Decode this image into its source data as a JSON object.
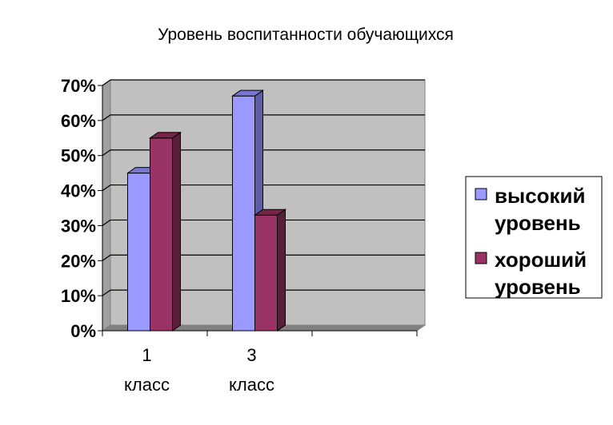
{
  "chart_data": {
    "type": "bar",
    "title": "Уровень воспитанности обучающихся",
    "categories": [
      [
        "1",
        "класс"
      ],
      [
        "3",
        "класс"
      ],
      [
        "",
        ""
      ]
    ],
    "series": [
      {
        "name": [
          "высокий",
          "уровень"
        ],
        "values": [
          45,
          67,
          null
        ],
        "color": "#9999ff",
        "side": "#5c5ca8",
        "top": "#7777cc"
      },
      {
        "name": [
          "хороший",
          "уровень"
        ],
        "values": [
          55,
          33,
          null
        ],
        "color": "#993366",
        "side": "#5a1d3a",
        "top": "#772449"
      }
    ],
    "yticks": [
      "0%",
      "10%",
      "20%",
      "30%",
      "40%",
      "50%",
      "60%",
      "70%"
    ],
    "ylim": [
      0,
      70
    ],
    "grid": true,
    "legend_position": "right",
    "colors": {
      "wall": "#c0c0c0",
      "wall_side": "#a0a0a0",
      "floor": "#808080",
      "grid": "#000000"
    }
  }
}
